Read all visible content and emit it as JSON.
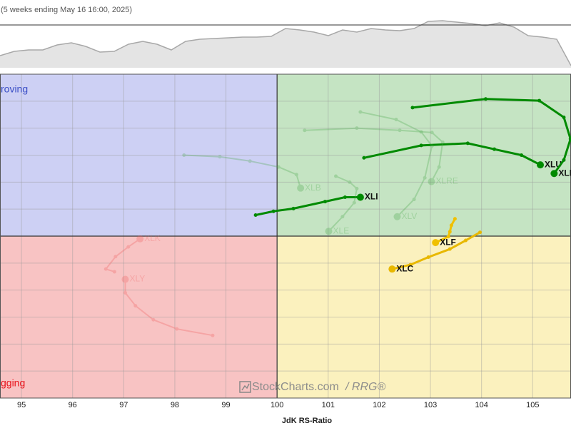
{
  "chart_data": [
    {
      "type": "area",
      "subtitle": "(5 weeks ending May 16 16:00, 2025)",
      "values": [
        17,
        23,
        25,
        25,
        32,
        35,
        30,
        22,
        23,
        33,
        37,
        33,
        25,
        37,
        40,
        41,
        42,
        43,
        43,
        44,
        55,
        53,
        50,
        45,
        53,
        50,
        55,
        53,
        52,
        55,
        65,
        66,
        64,
        62,
        59,
        63,
        57,
        45,
        43,
        40,
        3
      ],
      "ylim": [
        0,
        75
      ],
      "color": "#e4e4e4",
      "line_color": "#a8a8a8"
    },
    {
      "type": "rrg",
      "xlabel": "JdK RS-Ratio",
      "xlim": [
        94.58,
        105.75
      ],
      "ylim": [
        97,
        103
      ],
      "xticks": [
        95,
        96,
        97,
        98,
        99,
        100,
        101,
        102,
        103,
        104,
        105
      ],
      "yticks": [
        97,
        97.5,
        98,
        98.5,
        99,
        99.5,
        100,
        100.5,
        101,
        101.5,
        102,
        102.5,
        103
      ],
      "grid": true,
      "center": [
        100,
        100
      ],
      "quadrants": [
        {
          "corner": "top-left",
          "color": "#cdd0f4",
          "label": "roving",
          "label_color": "#3b4fc6"
        },
        {
          "corner": "top-right",
          "color": "#c5e4c3"
        },
        {
          "corner": "bottom-right",
          "color": "#fbf1be"
        },
        {
          "corner": "bottom-left",
          "color": "#f8c3c3",
          "label": "gging",
          "label_color": "#e8141c"
        }
      ],
      "watermark": [
        "StockCharts.com",
        "/ RRG®"
      ],
      "series": [
        {
          "name": "XLU",
          "color": "#008a00",
          "opacity": 1,
          "x": [
            101.7,
            102.82,
            103.73,
            104.25,
            104.78,
            105.15
          ],
          "y": [
            101.45,
            101.68,
            101.72,
            101.61,
            101.5,
            101.32
          ]
        },
        {
          "name": "XLP",
          "color": "#008a00",
          "opacity": 1,
          "x": [
            102.65,
            104.08,
            105.13,
            105.61,
            105.74,
            105.61,
            105.42
          ],
          "y": [
            102.38,
            102.54,
            102.51,
            102.2,
            101.8,
            101.41,
            101.16
          ]
        },
        {
          "name": "XLI",
          "color": "#008a00",
          "opacity": 1,
          "x": [
            99.58,
            99.93,
            100.32,
            100.94,
            101.33,
            101.63
          ],
          "y": [
            100.39,
            100.46,
            100.51,
            100.64,
            100.72,
            100.72
          ]
        },
        {
          "name": "XLB",
          "color": "#4aa84a",
          "opacity": 0.3,
          "x": [
            98.18,
            98.88,
            99.47,
            100.03,
            100.38,
            100.46
          ],
          "y": [
            101.5,
            101.47,
            101.39,
            101.28,
            101.14,
            100.89
          ]
        },
        {
          "name": "XLRE",
          "color": "#4aa84a",
          "opacity": 0.3,
          "x": [
            100.54,
            101.56,
            102.4,
            103.03,
            103.24,
            103.17,
            103.02
          ],
          "y": [
            101.96,
            102.0,
            101.96,
            101.92,
            101.74,
            101.28,
            101.01
          ]
        },
        {
          "name": "XLV",
          "color": "#4aa84a",
          "opacity": 0.3,
          "x": [
            101.63,
            102.33,
            102.82,
            103.03,
            102.89,
            102.68,
            102.35
          ],
          "y": [
            102.3,
            102.16,
            101.93,
            101.67,
            101.08,
            100.68,
            100.36
          ]
        },
        {
          "name": "XLE",
          "color": "#4aa84a",
          "opacity": 0.3,
          "x": [
            101.15,
            101.42,
            101.56,
            101.51,
            101.28,
            101.01
          ],
          "y": [
            101.11,
            101.0,
            100.88,
            100.62,
            100.36,
            100.09
          ]
        },
        {
          "name": "XLF",
          "color": "#f0c000",
          "opacity": 1,
          "x": [
            103.48,
            103.41,
            103.38,
            103.35,
            103.1
          ],
          "y": [
            100.32,
            100.2,
            100.08,
            99.99,
            99.88
          ]
        },
        {
          "name": "XLC",
          "color": "#e8b800",
          "opacity": 1,
          "x": [
            103.97,
            103.69,
            103.38,
            102.96,
            102.61,
            102.25
          ],
          "y": [
            100.07,
            99.92,
            99.76,
            99.61,
            99.47,
            99.39
          ]
        },
        {
          "name": "XLK",
          "color": "#f06060",
          "opacity": 0.3,
          "x": [
            96.82,
            96.65,
            96.84,
            97.09,
            97.32
          ],
          "y": [
            99.34,
            99.39,
            99.62,
            99.8,
            99.95
          ]
        },
        {
          "name": "XLY",
          "color": "#f06060",
          "opacity": 0.3,
          "x": [
            98.74,
            98.04,
            97.58,
            97.23,
            97.03,
            97.03
          ],
          "y": [
            98.16,
            98.28,
            98.45,
            98.71,
            98.95,
            99.2
          ]
        }
      ]
    }
  ]
}
